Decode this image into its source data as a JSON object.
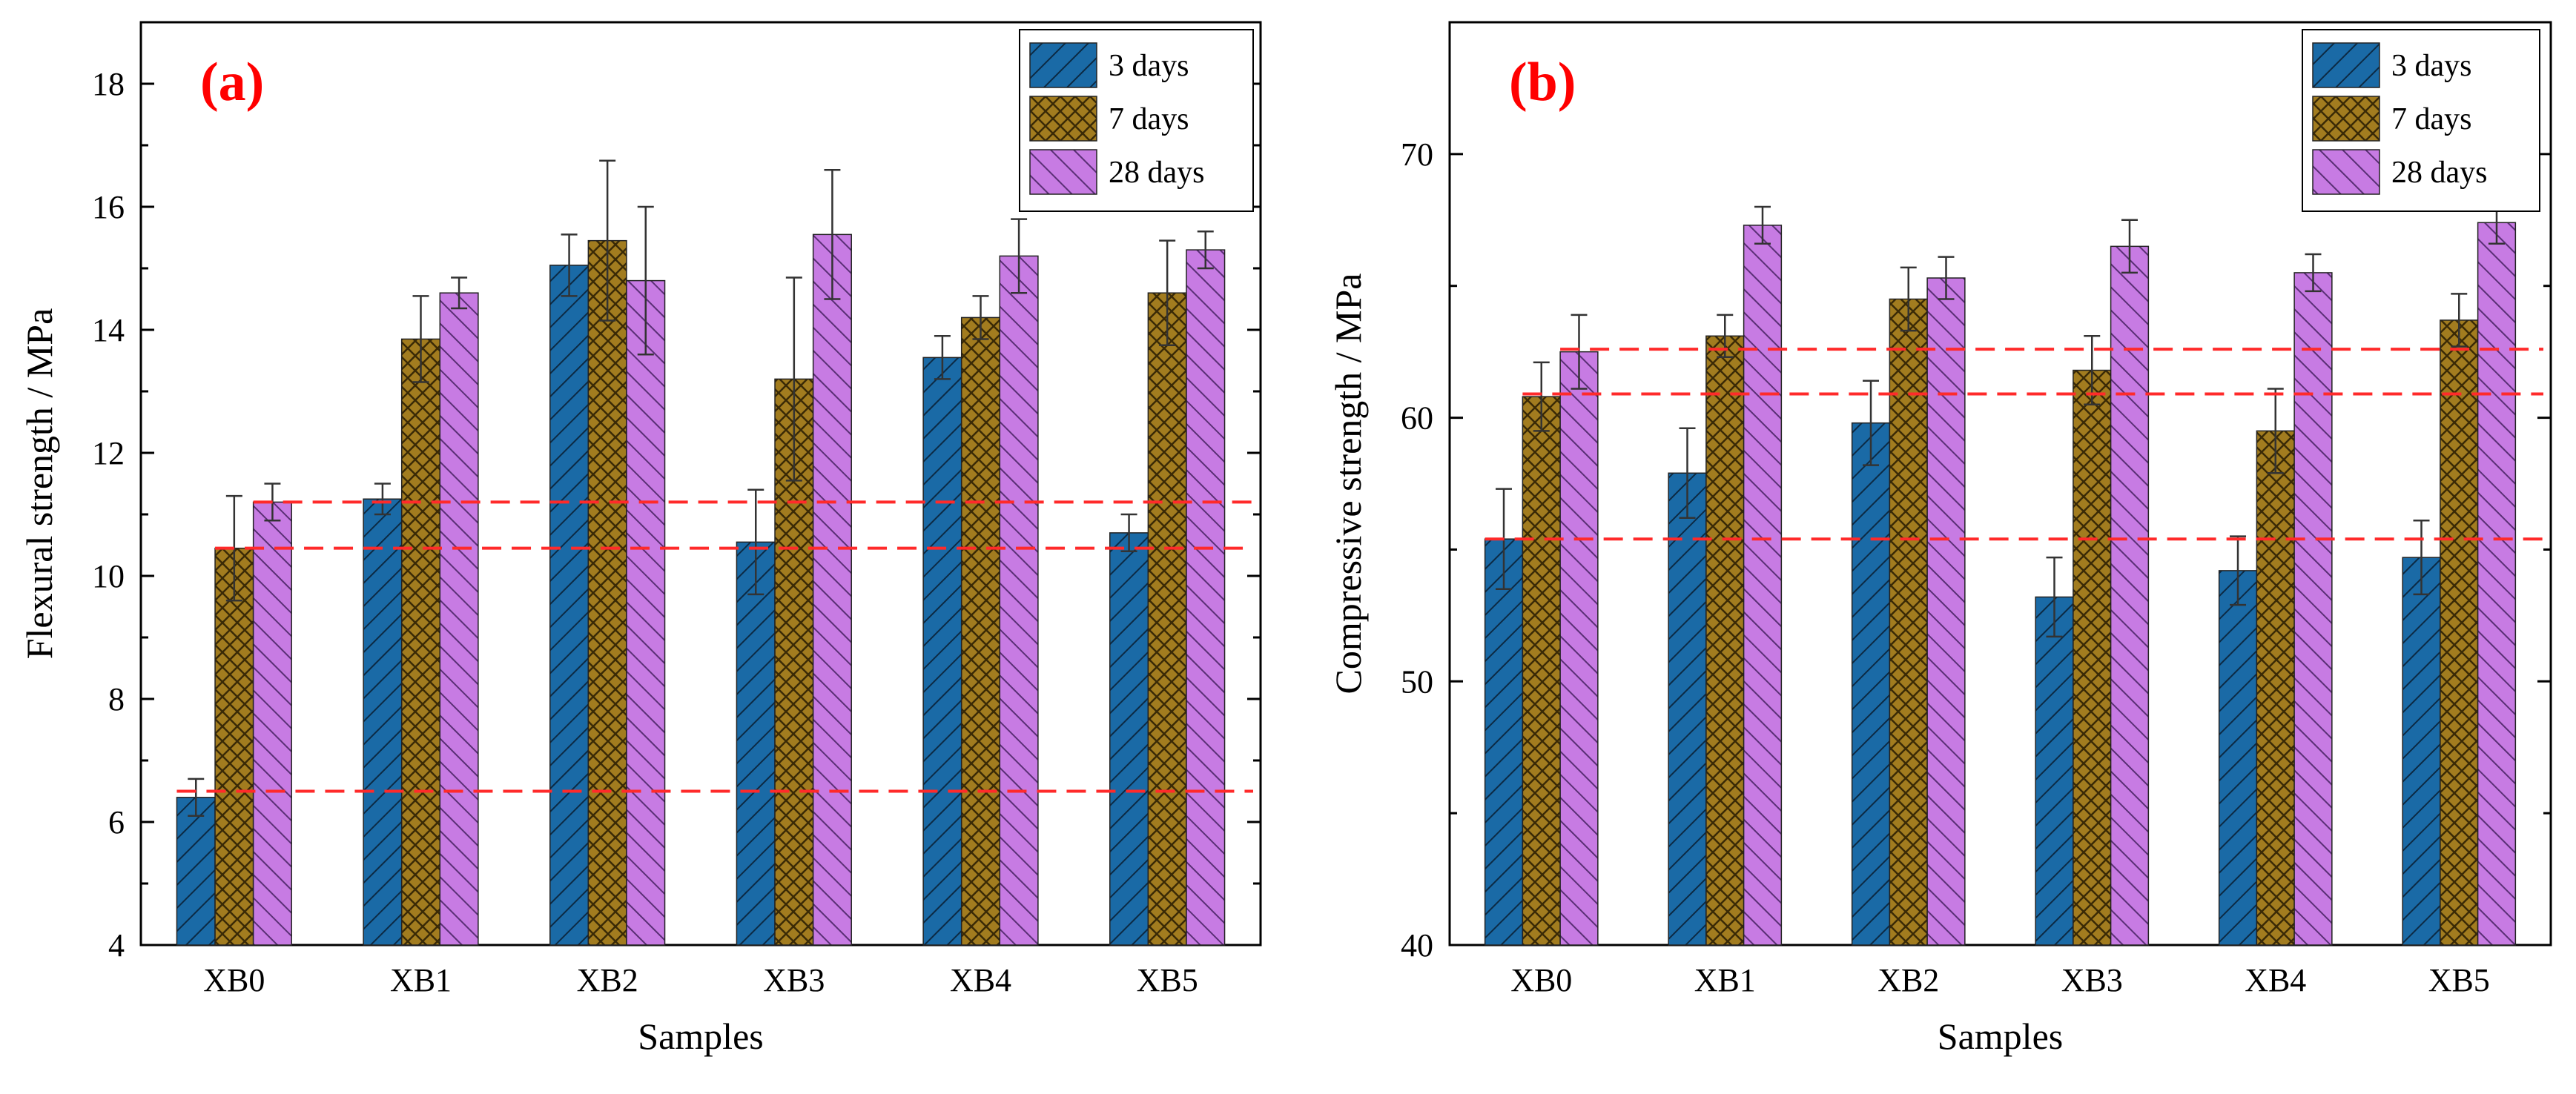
{
  "chart_data": [
    {
      "type": "bar",
      "panel_label": "(a)",
      "title": "",
      "xlabel": "Samples",
      "ylabel": "Flexural strength / MPa",
      "categories": [
        "XB0",
        "XB1",
        "XB2",
        "XB3",
        "XB4",
        "XB5"
      ],
      "ylim": [
        4,
        19
      ],
      "yticks": [
        4,
        6,
        8,
        10,
        12,
        14,
        16,
        18
      ],
      "series": [
        {
          "name": "3 days",
          "values": [
            6.4,
            11.25,
            15.05,
            10.55,
            13.55,
            10.7
          ],
          "errors": [
            0.3,
            0.25,
            0.5,
            0.85,
            0.35,
            0.3
          ]
        },
        {
          "name": "7 days",
          "values": [
            10.45,
            13.85,
            15.45,
            13.2,
            14.2,
            14.6
          ],
          "errors": [
            0.85,
            0.7,
            1.3,
            1.65,
            0.35,
            0.85
          ]
        },
        {
          "name": "28 days",
          "values": [
            11.2,
            14.6,
            14.8,
            15.55,
            15.2,
            15.3
          ],
          "errors": [
            0.3,
            0.25,
            1.2,
            1.05,
            0.6,
            0.3
          ]
        }
      ],
      "reference_lines": [
        6.5,
        10.45,
        11.2
      ],
      "legend_position": "top-right",
      "grid": false
    },
    {
      "type": "bar",
      "panel_label": "(b)",
      "title": "",
      "xlabel": "Samples",
      "ylabel": "Compressive strength / MPa",
      "categories": [
        "XB0",
        "XB1",
        "XB2",
        "XB3",
        "XB4",
        "XB5"
      ],
      "ylim": [
        40,
        75
      ],
      "yticks": [
        40,
        50,
        60,
        70
      ],
      "series": [
        {
          "name": "3 days",
          "values": [
            55.4,
            57.9,
            59.8,
            53.2,
            54.2,
            54.7
          ],
          "errors": [
            1.9,
            1.7,
            1.6,
            1.5,
            1.3,
            1.4
          ]
        },
        {
          "name": "7 days",
          "values": [
            60.8,
            63.1,
            64.5,
            61.8,
            59.5,
            63.7
          ],
          "errors": [
            1.3,
            0.8,
            1.2,
            1.3,
            1.6,
            1.0
          ]
        },
        {
          "name": "28 days",
          "values": [
            62.5,
            67.3,
            65.3,
            66.5,
            65.5,
            67.4
          ],
          "errors": [
            1.4,
            0.7,
            0.8,
            1.0,
            0.7,
            0.8
          ]
        }
      ],
      "reference_lines": [
        55.4,
        60.9,
        62.6
      ],
      "legend_position": "top-right",
      "grid": false
    }
  ],
  "colors": {
    "series_fill": [
      "#1a6aa6",
      "#a27c1f",
      "#c77be3"
    ],
    "series_hatch": [
      "#0c2a44",
      "#3a2a06",
      "#5a2f75"
    ],
    "reference_line": "#ff2a2a",
    "panel_label": "#ff0000",
    "axis": "#000000"
  }
}
